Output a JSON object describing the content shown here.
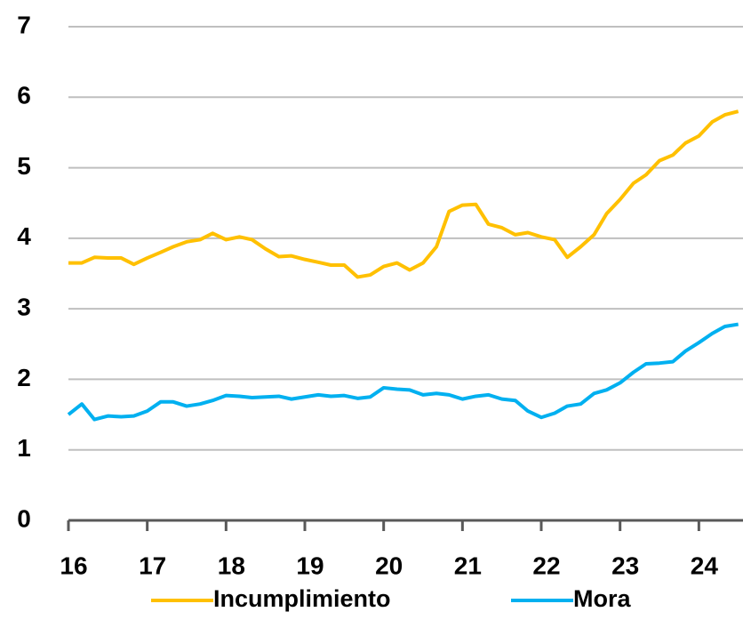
{
  "chart_data": {
    "type": "line",
    "x": [
      16,
      16.17,
      16.33,
      16.5,
      16.67,
      16.83,
      17,
      17.17,
      17.33,
      17.5,
      17.67,
      17.83,
      18,
      18.17,
      18.33,
      18.5,
      18.67,
      18.83,
      19,
      19.17,
      19.33,
      19.5,
      19.67,
      19.83,
      20,
      20.17,
      20.33,
      20.5,
      20.67,
      20.83,
      21,
      21.17,
      21.33,
      21.5,
      21.67,
      21.83,
      22,
      22.17,
      22.33,
      22.5,
      22.67,
      22.83,
      23,
      23.17,
      23.33,
      23.5,
      23.67,
      23.83,
      24,
      24.17,
      24.33,
      24.5
    ],
    "series": [
      {
        "name": "Incumplimiento",
        "color": "#ffc000",
        "values": [
          3.65,
          3.65,
          3.73,
          3.72,
          3.72,
          3.63,
          3.72,
          3.8,
          3.88,
          3.95,
          3.98,
          4.07,
          3.98,
          4.02,
          3.98,
          3.85,
          3.74,
          3.75,
          3.7,
          3.66,
          3.62,
          3.62,
          3.45,
          3.48,
          3.6,
          3.65,
          3.55,
          3.65,
          3.88,
          4.38,
          4.47,
          4.48,
          4.2,
          4.15,
          4.05,
          4.08,
          4.02,
          3.98,
          3.73,
          3.88,
          4.05,
          4.35,
          4.55,
          4.78,
          4.9,
          5.1,
          5.18,
          5.35,
          5.45,
          5.65,
          5.75,
          5.8
        ]
      },
      {
        "name": "Mora",
        "color": "#00b0f0",
        "values": [
          1.5,
          1.65,
          1.43,
          1.48,
          1.47,
          1.48,
          1.55,
          1.68,
          1.68,
          1.62,
          1.65,
          1.7,
          1.77,
          1.76,
          1.74,
          1.75,
          1.76,
          1.72,
          1.75,
          1.78,
          1.76,
          1.77,
          1.73,
          1.75,
          1.88,
          1.86,
          1.85,
          1.78,
          1.8,
          1.78,
          1.72,
          1.76,
          1.78,
          1.72,
          1.7,
          1.55,
          1.46,
          1.52,
          1.62,
          1.65,
          1.8,
          1.85,
          1.95,
          2.1,
          2.22,
          2.23,
          2.25,
          2.4,
          2.52,
          2.65,
          2.75,
          2.78
        ]
      }
    ],
    "xlim": [
      16,
      24.56
    ],
    "xticks": [
      16,
      17,
      18,
      19,
      20,
      21,
      22,
      23,
      24
    ],
    "ylim": [
      0,
      7
    ],
    "yticks": [
      0,
      1,
      2,
      3,
      4,
      5,
      6,
      7
    ],
    "grid": true,
    "legend": "bottom"
  }
}
